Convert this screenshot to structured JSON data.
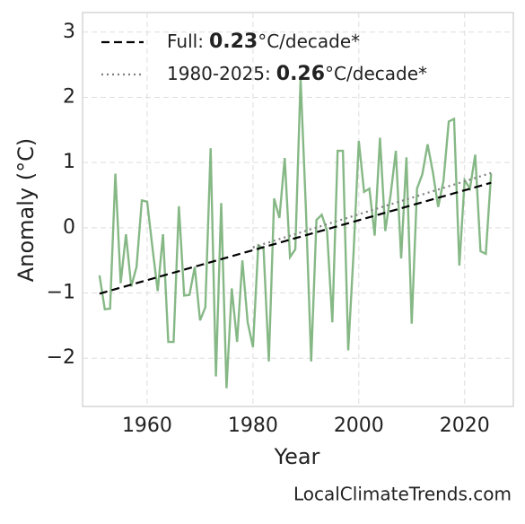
{
  "chart_data": {
    "type": "line",
    "xlabel": "Year",
    "ylabel": "Anomaly (°C)",
    "source": "LocalClimateTrends.com",
    "xlim": [
      1947.8,
      2029.2
    ],
    "ylim": [
      -2.74,
      3.3
    ],
    "xticks": [
      1960,
      1980,
      2000,
      2020
    ],
    "yticks": [
      {
        "value": -2,
        "label": "−2"
      },
      {
        "value": -1,
        "label": "−1"
      },
      0,
      1,
      2,
      3
    ],
    "grid": true,
    "legend": "upper left",
    "series": [
      {
        "color": "#86b886",
        "style": "solid",
        "x": [
          1951,
          1952,
          1953,
          1954,
          1955,
          1956,
          1957,
          1958,
          1959,
          1960,
          1961,
          1962,
          1963,
          1964,
          1965,
          1966,
          1967,
          1968,
          1969,
          1970,
          1971,
          1972,
          1973,
          1974,
          1975,
          1976,
          1977,
          1978,
          1979,
          1980,
          1981,
          1982,
          1983,
          1984,
          1985,
          1986,
          1987,
          1988,
          1989,
          1990,
          1991,
          1992,
          1993,
          1994,
          1995,
          1996,
          1997,
          1998,
          1999,
          2000,
          2001,
          2002,
          2003,
          2004,
          2005,
          2006,
          2007,
          2008,
          2009,
          2010,
          2011,
          2012,
          2013,
          2014,
          2015,
          2016,
          2017,
          2018,
          2019,
          2020,
          2021,
          2022,
          2023,
          2024,
          2025
        ],
        "values": [
          -0.73,
          -1.25,
          -1.24,
          0.83,
          -0.85,
          -0.1,
          -0.9,
          -0.6,
          0.42,
          0.4,
          -0.3,
          -0.97,
          -0.1,
          -1.75,
          -1.75,
          0.33,
          -1.04,
          -1.03,
          -0.6,
          -1.42,
          -1.22,
          1.22,
          -2.28,
          0.38,
          -2.46,
          -0.93,
          -1.75,
          -0.5,
          -1.45,
          -1.83,
          -0.27,
          -0.32,
          -2.05,
          0.45,
          0.15,
          1.07,
          -0.45,
          -0.33,
          2.28,
          0.3,
          -2.05,
          0.12,
          0.2,
          -0.05,
          -1.45,
          1.18,
          1.18,
          -1.88,
          -0.4,
          1.33,
          0.55,
          0.6,
          -0.12,
          1.38,
          -0.05,
          0.5,
          1.18,
          -0.47,
          1.08,
          -1.47,
          0.6,
          0.82,
          1.28,
          0.85,
          0.32,
          0.72,
          1.63,
          1.67,
          -0.58,
          0.73,
          0.6,
          1.12,
          -0.36,
          -0.4,
          0.83
        ]
      },
      {
        "name": "Full:",
        "rate": 0.23,
        "rate_unit": "°C/decade*",
        "color": "#000000",
        "style": "dashed",
        "x": [
          1951,
          2025
        ],
        "values": [
          -1.01,
          0.69
        ]
      },
      {
        "name": "1980-2025:",
        "rate": 0.26,
        "rate_unit": "°C/decade*",
        "color": "#808080",
        "style": "dotted",
        "x": [
          1980,
          2025
        ],
        "values": [
          -0.3,
          0.84
        ]
      }
    ]
  }
}
